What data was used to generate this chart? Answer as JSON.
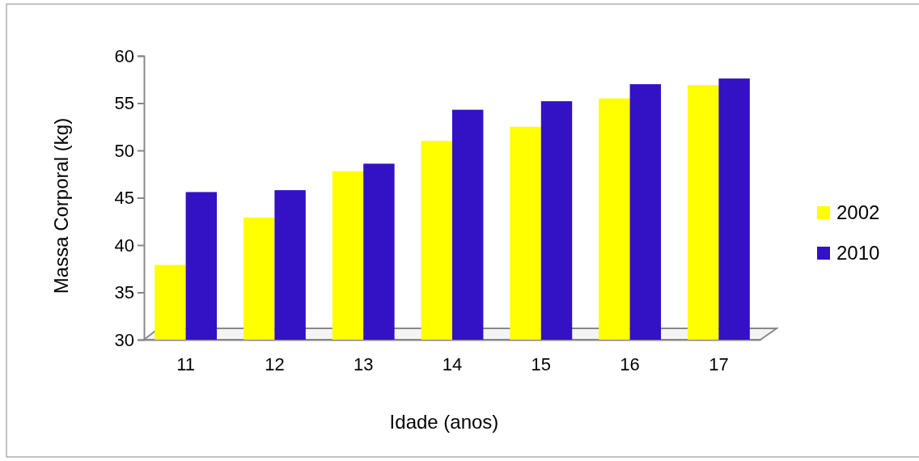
{
  "chart_data": {
    "type": "bar",
    "xlabel": "Idade (anos)",
    "ylabel": "Massa Corporal (kg)",
    "categories": [
      "11",
      "12",
      "13",
      "14",
      "15",
      "16",
      "17"
    ],
    "series": [
      {
        "name": "2002",
        "color": "#ffff00",
        "values": [
          37.9,
          42.9,
          47.8,
          51.0,
          52.5,
          55.5,
          56.9
        ]
      },
      {
        "name": "2010",
        "color": "#3311c4",
        "values": [
          45.6,
          45.8,
          48.6,
          54.3,
          55.2,
          57.0,
          57.6
        ]
      }
    ],
    "ylim": [
      30,
      60
    ],
    "yticks": [
      30,
      35,
      40,
      45,
      50,
      55,
      60
    ],
    "grid": false,
    "legend": "right"
  }
}
